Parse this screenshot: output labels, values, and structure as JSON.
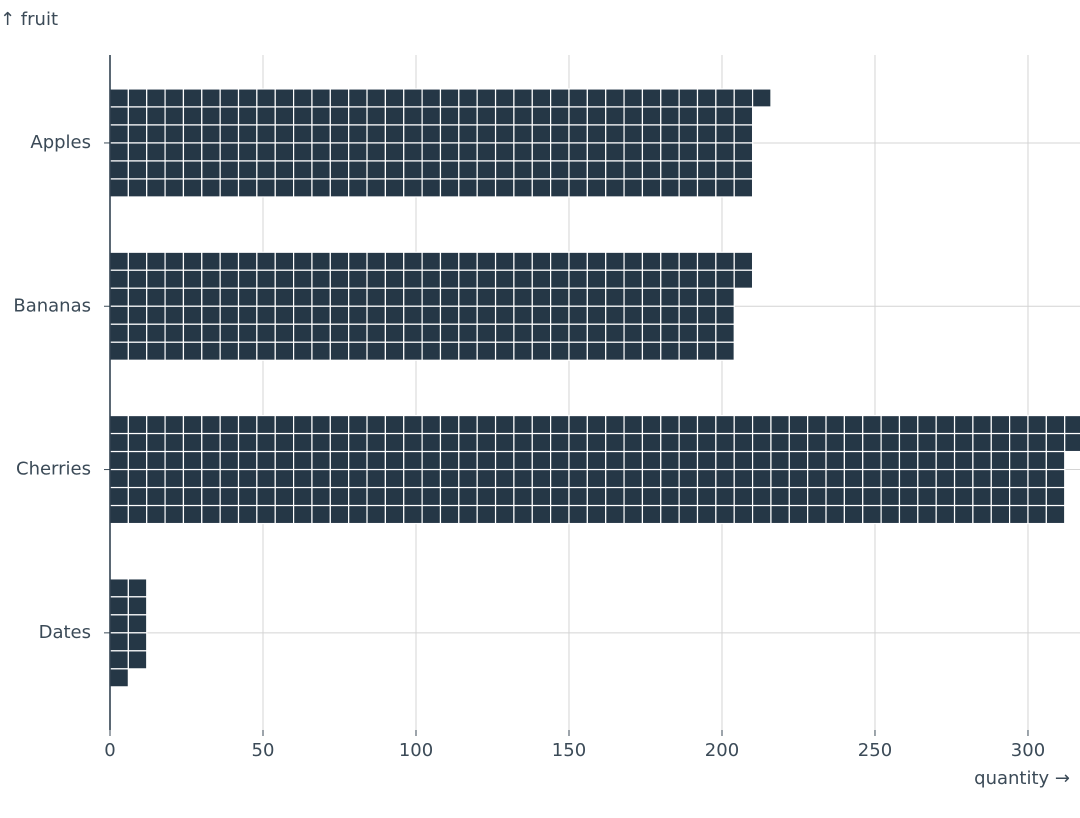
{
  "chart_data": {
    "type": "waffle",
    "y_label": "↑ fruit",
    "x_label": "quantity →",
    "categories": [
      "Apples",
      "Bananas",
      "Cherries",
      "Dates"
    ],
    "values": [
      211,
      206,
      314,
      11
    ],
    "color": "#253746",
    "xlim": [
      0,
      317
    ],
    "xticks": [
      0,
      50,
      100,
      150,
      200,
      250,
      300
    ],
    "grid": true
  }
}
